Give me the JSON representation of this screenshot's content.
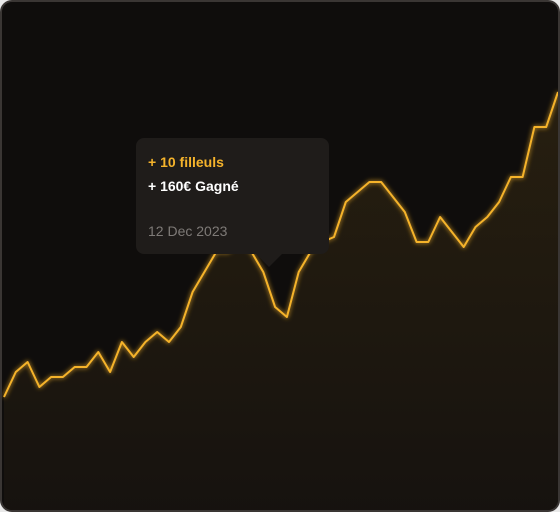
{
  "tooltip": {
    "referrals": "+ 10 filleuls",
    "earned": "+ 160€ Gagné",
    "date": "12 Dec 2023"
  },
  "colors": {
    "line": "#f5b32b",
    "background": "#0f0d0c",
    "tooltip_bg": "#1f1c1a"
  },
  "chart_data": {
    "type": "area",
    "title": "",
    "xlabel": "",
    "ylabel": "",
    "grid": false,
    "legend": "none",
    "ylim": [
      0,
      100
    ],
    "values": [
      21,
      26,
      28,
      23,
      25,
      25,
      27,
      27,
      30,
      26,
      32,
      29,
      32,
      34,
      32,
      35,
      42,
      46,
      50,
      50,
      52,
      50,
      46,
      39,
      37,
      46,
      50,
      52,
      53,
      60,
      62,
      64,
      64,
      61,
      58,
      52,
      52,
      57,
      54,
      51,
      55,
      57,
      60,
      65,
      65,
      75,
      75,
      82
    ]
  }
}
